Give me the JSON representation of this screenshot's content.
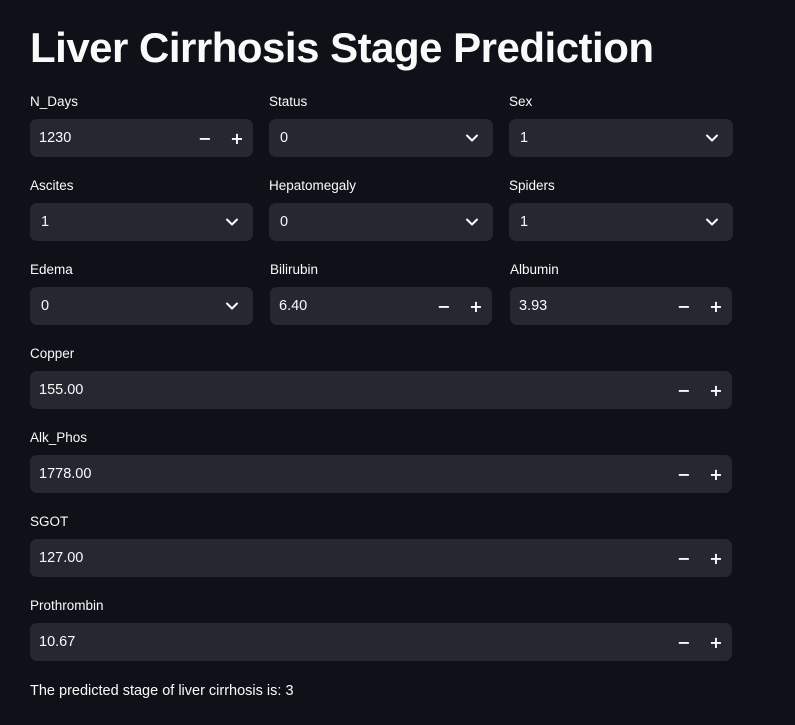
{
  "title": "Liver Cirrhosis Stage Prediction",
  "fields": {
    "n_days": {
      "label": "N_Days",
      "value": "1230",
      "decrement": "−",
      "increment": "+"
    },
    "status": {
      "label": "Status",
      "value": "0"
    },
    "sex": {
      "label": "Sex",
      "value": "1"
    },
    "ascites": {
      "label": "Ascites",
      "value": "1"
    },
    "hepatomegaly": {
      "label": "Hepatomegaly",
      "value": "0"
    },
    "spiders": {
      "label": "Spiders",
      "value": "1"
    },
    "edema": {
      "label": "Edema",
      "value": "0"
    },
    "bilirubin": {
      "label": "Bilirubin",
      "value": "6.40",
      "decrement": "−",
      "increment": "+"
    },
    "albumin": {
      "label": "Albumin",
      "value": "3.93",
      "decrement": "−",
      "increment": "+"
    },
    "copper": {
      "label": "Copper",
      "value": "155.00",
      "decrement": "−",
      "increment": "+"
    },
    "alk_phos": {
      "label": "Alk_Phos",
      "value": "1778.00",
      "decrement": "−",
      "increment": "+"
    },
    "sgot": {
      "label": "SGOT",
      "value": "127.00",
      "decrement": "−",
      "increment": "+"
    },
    "prothrombin": {
      "label": "Prothrombin",
      "value": "10.67",
      "decrement": "−",
      "increment": "+"
    }
  },
  "icons": {
    "dropdown": "chevron-down-icon"
  },
  "result": {
    "text": "The predicted stage of liver cirrhosis is: 3"
  },
  "colors": {
    "background": "#0e1117",
    "control": "#262730",
    "text": "#fafafa"
  }
}
